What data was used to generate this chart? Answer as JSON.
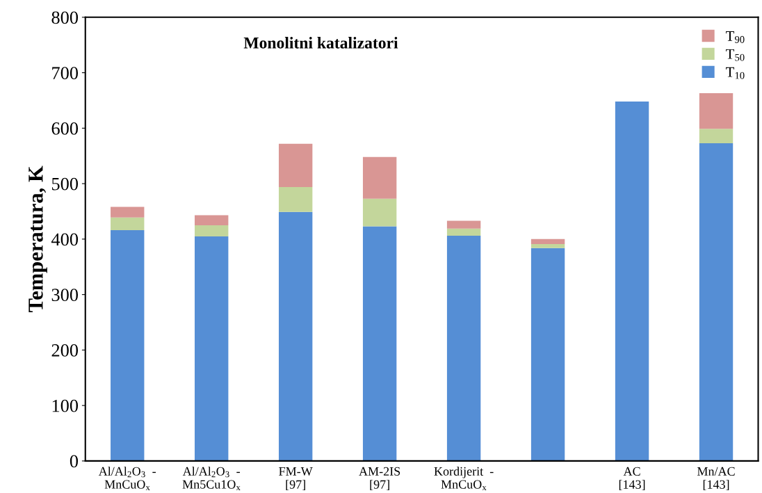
{
  "chart_data": {
    "type": "bar",
    "stacked": true,
    "title": "Monolitni katalizatori",
    "ylabel": "Temperatura, K",
    "categories": [
      "Al/Al$_{2}$O$_{3}$  -\nMnCuO$_{x}$",
      "Al/Al$_{2}$O$_{3}$  -\nMn5Cu1O$_{x}$",
      "FM-W\n[97]",
      "AM-2IS\n[97]",
      "Kordijerit  -\nMnCuO$_{x}$",
      null,
      "AC\n[143]",
      "Mn/AC\n[143]"
    ],
    "series": [
      {
        "name": "T$_{10}$",
        "color": "#558ed5",
        "values": [
          416,
          405,
          449,
          423,
          406,
          384,
          648,
          573
        ]
      },
      {
        "name": "T$_{50}$",
        "color": "#c3d69b",
        "values": [
          23,
          20,
          45,
          50,
          13,
          7,
          0,
          26
        ]
      },
      {
        "name": "T$_{90}$",
        "color": "#d99694",
        "values": [
          19,
          18,
          78,
          75,
          14,
          9,
          0,
          64
        ]
      }
    ],
    "ylim": [
      0,
      800
    ],
    "yticks": [
      0,
      100,
      200,
      300,
      400,
      500,
      600,
      700,
      800
    ],
    "grid": false,
    "legend": "top right"
  }
}
